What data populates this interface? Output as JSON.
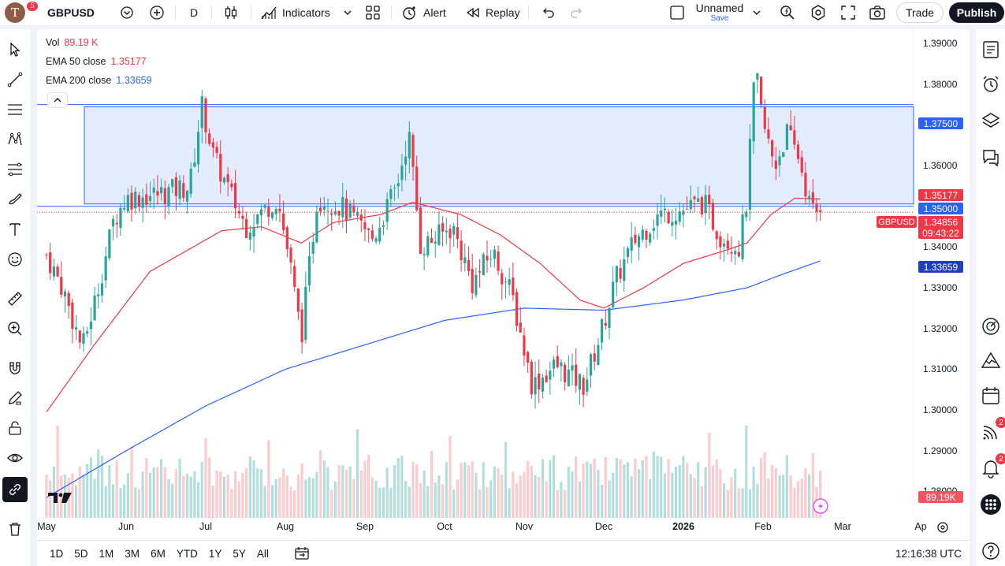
{
  "header": {
    "avatar_letter": "T",
    "avatar_badge": "5",
    "symbol": "GBPUSD",
    "interval": "D",
    "indicators_label": "Indicators",
    "alert_label": "Alert",
    "replay_label": "Replay",
    "layout_name": "Unnamed",
    "layout_save": "Save",
    "trade_label": "Trade",
    "publish_label": "Publish"
  },
  "legend": {
    "vol_label": "Vol",
    "vol_value": "89.19 K",
    "ema50_label": "EMA 50 close",
    "ema50_value": "1.35177",
    "ema200_label": "EMA 200 close",
    "ema200_value": "1.33659"
  },
  "price_axis": {
    "labels": [
      "1.39000",
      "1.38000",
      "1.37000",
      "1.36000",
      "1.35000",
      "1.34000",
      "1.33000",
      "1.32000",
      "1.31000",
      "1.30000",
      "1.29000",
      "1.28000"
    ],
    "tags": {
      "zone_top": "1.37500",
      "ema50": "1.35177",
      "zone_bottom": "1.35000",
      "symbol": "GBPUSD",
      "last_price": "1.34856",
      "countdown": "09:43:22",
      "ema200": "1.33659",
      "volume": "89.19K"
    }
  },
  "time_axis": {
    "labels": [
      "May",
      "Jun",
      "Jul",
      "Aug",
      "Sep",
      "Oct",
      "Nov",
      "Dec",
      "2026",
      "Feb",
      "Mar",
      "Ap"
    ]
  },
  "bottom": {
    "ranges": [
      "1D",
      "5D",
      "1M",
      "3M",
      "6M",
      "YTD",
      "1Y",
      "5Y",
      "All"
    ],
    "clock": "12:16:38 UTC"
  },
  "right_badges": {
    "signals": "2",
    "alerts": "2"
  },
  "colors": {
    "up": "#26a69a",
    "down": "#f23645",
    "ema50": "#f23645",
    "ema200": "#2962ff",
    "zone_fill": "#e3ecfd",
    "zone_line": "#2962ff"
  },
  "chart_data": {
    "type": "candlestick",
    "ylim": [
      1.2735,
      1.3935
    ],
    "zone": {
      "top": 1.375,
      "bottom": 1.35
    },
    "last_price": 1.34856,
    "series_keypoints": [
      {
        "m": 0,
        "p": 1.338
      },
      {
        "m": 0.2,
        "p": 1.33
      },
      {
        "m": 0.45,
        "p": 1.315
      },
      {
        "m": 0.65,
        "p": 1.33
      },
      {
        "m": 0.85,
        "p": 1.347
      },
      {
        "m": 1.0,
        "p": 1.352
      },
      {
        "m": 1.4,
        "p": 1.353
      },
      {
        "m": 1.8,
        "p": 1.355
      },
      {
        "m": 1.95,
        "p": 1.375
      },
      {
        "m": 2.1,
        "p": 1.362
      },
      {
        "m": 2.5,
        "p": 1.345
      },
      {
        "m": 2.9,
        "p": 1.352
      },
      {
        "m": 3.05,
        "p": 1.337
      },
      {
        "m": 3.2,
        "p": 1.318
      },
      {
        "m": 3.4,
        "p": 1.352
      },
      {
        "m": 3.7,
        "p": 1.35
      },
      {
        "m": 4.1,
        "p": 1.342
      },
      {
        "m": 4.4,
        "p": 1.355
      },
      {
        "m": 4.55,
        "p": 1.368
      },
      {
        "m": 4.7,
        "p": 1.34
      },
      {
        "m": 4.95,
        "p": 1.343
      },
      {
        "m": 5.1,
        "p": 1.345
      },
      {
        "m": 5.35,
        "p": 1.331
      },
      {
        "m": 5.6,
        "p": 1.339
      },
      {
        "m": 5.85,
        "p": 1.328
      },
      {
        "m": 6.1,
        "p": 1.306
      },
      {
        "m": 6.4,
        "p": 1.311
      },
      {
        "m": 6.75,
        "p": 1.306
      },
      {
        "m": 6.95,
        "p": 1.318
      },
      {
        "m": 7.15,
        "p": 1.332
      },
      {
        "m": 7.4,
        "p": 1.342
      },
      {
        "m": 7.7,
        "p": 1.348
      },
      {
        "m": 8.0,
        "p": 1.349
      },
      {
        "m": 8.25,
        "p": 1.351
      },
      {
        "m": 8.45,
        "p": 1.343
      },
      {
        "m": 8.7,
        "p": 1.34
      },
      {
        "m": 8.8,
        "p": 1.352
      },
      {
        "m": 8.9,
        "p": 1.384
      },
      {
        "m": 9.0,
        "p": 1.37
      },
      {
        "m": 9.15,
        "p": 1.36
      },
      {
        "m": 9.3,
        "p": 1.368
      },
      {
        "m": 9.45,
        "p": 1.362
      },
      {
        "m": 9.6,
        "p": 1.349
      },
      {
        "m": 9.72,
        "p": 1.34856
      }
    ],
    "ema50_keypoints": [
      {
        "m": 0,
        "p": 1.2995
      },
      {
        "m": 0.6,
        "p": 1.316
      },
      {
        "m": 1.3,
        "p": 1.334
      },
      {
        "m": 2.2,
        "p": 1.344
      },
      {
        "m": 2.7,
        "p": 1.345
      },
      {
        "m": 3.2,
        "p": 1.341
      },
      {
        "m": 3.6,
        "p": 1.346
      },
      {
        "m": 4.2,
        "p": 1.348
      },
      {
        "m": 4.6,
        "p": 1.351
      },
      {
        "m": 5.2,
        "p": 1.348
      },
      {
        "m": 5.7,
        "p": 1.343
      },
      {
        "m": 6.2,
        "p": 1.336
      },
      {
        "m": 6.7,
        "p": 1.327
      },
      {
        "m": 7.0,
        "p": 1.325
      },
      {
        "m": 7.5,
        "p": 1.33
      },
      {
        "m": 8.0,
        "p": 1.336
      },
      {
        "m": 8.5,
        "p": 1.339
      },
      {
        "m": 8.8,
        "p": 1.341
      },
      {
        "m": 9.1,
        "p": 1.348
      },
      {
        "m": 9.4,
        "p": 1.352
      },
      {
        "m": 9.72,
        "p": 1.3518
      }
    ],
    "ema200_keypoints": [
      {
        "m": 0,
        "p": 1.2785
      },
      {
        "m": 1.0,
        "p": 1.29
      },
      {
        "m": 2.0,
        "p": 1.301
      },
      {
        "m": 3.0,
        "p": 1.31
      },
      {
        "m": 4.0,
        "p": 1.316
      },
      {
        "m": 5.0,
        "p": 1.322
      },
      {
        "m": 6.0,
        "p": 1.325
      },
      {
        "m": 7.0,
        "p": 1.3245
      },
      {
        "m": 8.0,
        "p": 1.327
      },
      {
        "m": 8.8,
        "p": 1.33
      },
      {
        "m": 9.2,
        "p": 1.333
      },
      {
        "m": 9.72,
        "p": 1.3366
      }
    ]
  }
}
